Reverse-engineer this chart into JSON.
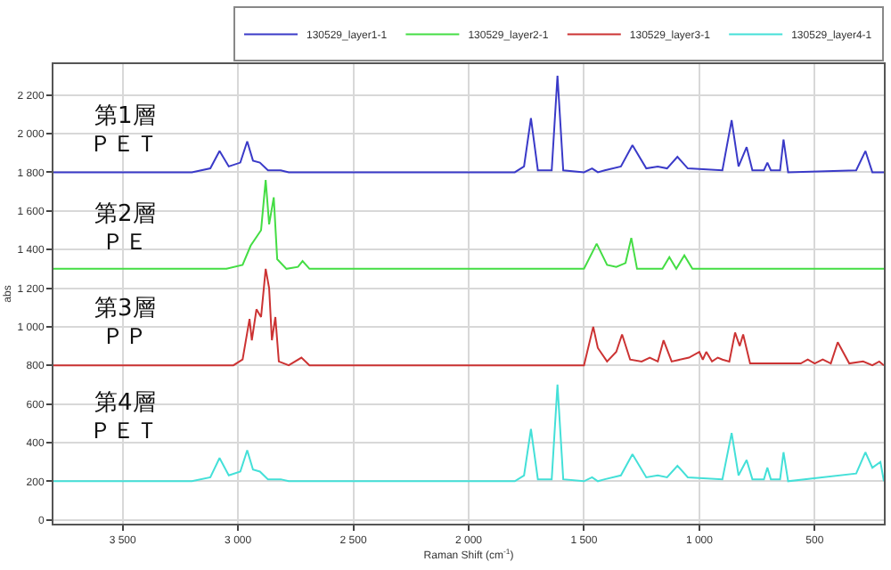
{
  "chart_data": {
    "type": "line",
    "xlabel": "Raman Shift (cm$^{-1}$)",
    "ylabel": "abs",
    "xlim": [
      3800,
      200
    ],
    "ylim": [
      -20,
      2360
    ],
    "xticks": [
      {
        "value": 3500,
        "label": "3 500"
      },
      {
        "value": 3000,
        "label": "3 000"
      },
      {
        "value": 2500,
        "label": "2 500"
      },
      {
        "value": 2000,
        "label": "2 000"
      },
      {
        "value": 1500,
        "label": "1 500"
      },
      {
        "value": 1000,
        "label": "1 000"
      },
      {
        "value": 500,
        "label": "500"
      }
    ],
    "yticks": [
      0,
      200,
      400,
      600,
      800,
      {
        "value": 1000,
        "label": "1 000"
      },
      {
        "value": 1200,
        "label": "1 200"
      },
      {
        "value": 1400,
        "label": "1 400"
      },
      {
        "value": 1600,
        "label": "1 600"
      },
      {
        "value": 1800,
        "label": "1 800"
      },
      {
        "value": 2000,
        "label": "2 000"
      },
      {
        "value": 2200,
        "label": "2 200"
      }
    ],
    "grid": true,
    "legend": "top right",
    "marker": "none",
    "line_style": "solid",
    "series": [
      {
        "name": "130529_layer1-1",
        "color": "#3a3ac8",
        "x": [
          3800,
          3200,
          3120,
          3080,
          3040,
          2990,
          2960,
          2935,
          2905,
          2870,
          2815,
          2780,
          1800,
          1760,
          1730,
          1700,
          1640,
          1615,
          1590,
          1500,
          1465,
          1440,
          1410,
          1340,
          1290,
          1230,
          1180,
          1140,
          1095,
          1050,
          900,
          860,
          830,
          795,
          770,
          720,
          705,
          690,
          650,
          635,
          615,
          320,
          280,
          250,
          200
        ],
        "values": [
          1800,
          1800,
          1820,
          1910,
          1830,
          1850,
          1960,
          1860,
          1850,
          1810,
          1810,
          1800,
          1800,
          1830,
          2080,
          1810,
          1810,
          2300,
          1810,
          1800,
          1820,
          1800,
          1810,
          1830,
          1940,
          1820,
          1830,
          1820,
          1880,
          1820,
          1810,
          2070,
          1830,
          1930,
          1810,
          1810,
          1850,
          1810,
          1810,
          1970,
          1800,
          1810,
          1910,
          1800,
          1800
        ]
      },
      {
        "name": "130529_layer2-1",
        "color": "#44dd44",
        "x": [
          3800,
          3050,
          2980,
          2945,
          2900,
          2880,
          2865,
          2845,
          2830,
          2790,
          2740,
          2720,
          2690,
          1500,
          1445,
          1400,
          1360,
          1320,
          1295,
          1270,
          1160,
          1130,
          1100,
          1065,
          1030,
          200
        ],
        "values": [
          1300,
          1300,
          1320,
          1420,
          1500,
          1760,
          1530,
          1670,
          1350,
          1300,
          1310,
          1340,
          1300,
          1300,
          1430,
          1320,
          1310,
          1330,
          1460,
          1300,
          1300,
          1360,
          1300,
          1370,
          1300,
          1300
        ]
      },
      {
        "name": "130529_layer3-1",
        "color": "#cc3333",
        "x": [
          3800,
          3020,
          2980,
          2950,
          2940,
          2920,
          2900,
          2880,
          2865,
          2853,
          2838,
          2823,
          2780,
          2725,
          2690,
          1500,
          1460,
          1440,
          1400,
          1360,
          1335,
          1300,
          1250,
          1215,
          1180,
          1155,
          1120,
          1045,
          1000,
          985,
          970,
          945,
          920,
          900,
          870,
          845,
          825,
          810,
          780,
          560,
          530,
          500,
          465,
          430,
          400,
          350,
          290,
          250,
          220,
          200
        ],
        "values": [
          800,
          800,
          830,
          1040,
          930,
          1090,
          1050,
          1300,
          1200,
          930,
          1050,
          820,
          800,
          840,
          800,
          800,
          1000,
          890,
          820,
          870,
          960,
          830,
          820,
          840,
          820,
          930,
          820,
          840,
          870,
          830,
          870,
          820,
          840,
          830,
          820,
          970,
          900,
          960,
          810,
          810,
          830,
          810,
          830,
          810,
          920,
          810,
          820,
          800,
          820,
          800
        ]
      },
      {
        "name": "130529_layer4-1",
        "color": "#44e0d8",
        "x": [
          3800,
          3200,
          3120,
          3080,
          3040,
          2990,
          2960,
          2935,
          2905,
          2870,
          2815,
          2780,
          1800,
          1760,
          1730,
          1700,
          1640,
          1615,
          1590,
          1500,
          1465,
          1440,
          1410,
          1340,
          1290,
          1230,
          1180,
          1140,
          1095,
          1050,
          900,
          860,
          830,
          795,
          770,
          720,
          705,
          690,
          650,
          635,
          615,
          320,
          280,
          250,
          215,
          200
        ],
        "values": [
          200,
          200,
          220,
          320,
          230,
          250,
          360,
          260,
          250,
          210,
          210,
          200,
          200,
          230,
          470,
          210,
          210,
          700,
          210,
          200,
          220,
          200,
          210,
          230,
          340,
          220,
          230,
          220,
          280,
          220,
          210,
          450,
          230,
          310,
          210,
          210,
          270,
          210,
          210,
          350,
          200,
          240,
          350,
          270,
          300,
          200
        ]
      }
    ],
    "annotations": [
      "第1層",
      "ＰＥＴ",
      "第2層",
      "ＰＥ",
      "第3層",
      "ＰＰ",
      "第4層",
      "ＰＥＴ"
    ]
  }
}
